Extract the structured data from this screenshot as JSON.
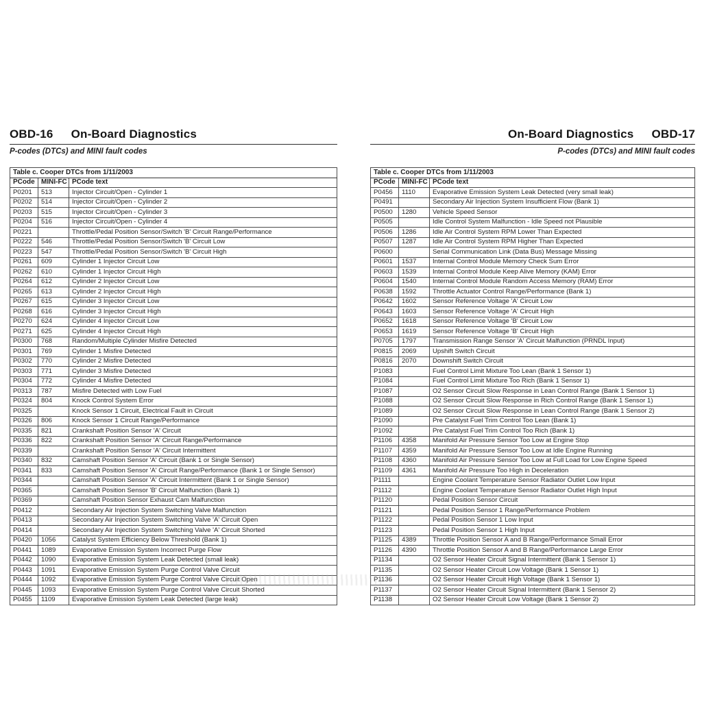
{
  "pages": [
    {
      "header": {
        "code": "OBD-16",
        "title": "On-Board Diagnostics",
        "subtitle": "P-codes (DTCs) and MINI fault codes"
      },
      "table": {
        "caption": "Table c. Cooper DTCs from 1/11/2003",
        "columns": [
          "PCode",
          "MINI-FC",
          "PCode text"
        ],
        "rows": [
          [
            "P0201",
            "513",
            "Injector Circuit/Open - Cylinder 1"
          ],
          [
            "P0202",
            "514",
            "Injector Circuit/Open - Cylinder 2"
          ],
          [
            "P0203",
            "515",
            "Injector Circuit/Open - Cylinder 3"
          ],
          [
            "P0204",
            "516",
            "Injector Circuit/Open - Cylinder 4"
          ],
          [
            "P0221",
            "",
            "Throttle/Pedal Position Sensor/Switch 'B' Circuit Range/Performance"
          ],
          [
            "P0222",
            "546",
            "Throttle/Pedal Position Sensor/Switch 'B' Circuit Low"
          ],
          [
            "P0223",
            "547",
            "Throttle/Pedal Position Sensor/Switch 'B' Circuit High"
          ],
          [
            "P0261",
            "609",
            "Cylinder 1 Injector Circuit Low"
          ],
          [
            "P0262",
            "610",
            "Cylinder 1 Injector Circuit High"
          ],
          [
            "P0264",
            "612",
            "Cylinder 2 Injector Circuit Low"
          ],
          [
            "P0265",
            "613",
            "Cylinder 2 Injector Circuit High"
          ],
          [
            "P0267",
            "615",
            "Cylinder 3 Injector Circuit Low"
          ],
          [
            "P0268",
            "616",
            "Cylinder 3 Injector Circuit High"
          ],
          [
            "P0270",
            "624",
            "Cylinder 4 Injector Circuit Low"
          ],
          [
            "P0271",
            "625",
            "Cylinder 4 Injector Circuit High"
          ],
          [
            "P0300",
            "768",
            "Random/Multiple Cylinder Misfire Detected"
          ],
          [
            "P0301",
            "769",
            "Cylinder 1 Misfire Detected"
          ],
          [
            "P0302",
            "770",
            "Cylinder 2 Misfire Detected"
          ],
          [
            "P0303",
            "771",
            "Cylinder 3 Misfire Detected"
          ],
          [
            "P0304",
            "772",
            "Cylinder 4 Misfire Detected"
          ],
          [
            "P0313",
            "787",
            "Misfire Detected with Low Fuel"
          ],
          [
            "P0324",
            "804",
            "Knock Control System Error"
          ],
          [
            "P0325",
            "",
            "Knock Sensor 1 Circuit, Electrical Fault in Circuit"
          ],
          [
            "P0326",
            "806",
            "Knock Sensor 1 Circuit Range/Performance"
          ],
          [
            "P0335",
            "821",
            "Crankshaft Position Sensor 'A' Circuit"
          ],
          [
            "P0336",
            "822",
            "Crankshaft Position Sensor 'A' Circuit Range/Performance"
          ],
          [
            "P0339",
            "",
            "Crankshaft Position Sensor 'A' Circuit Intermittent"
          ],
          [
            "P0340",
            "832",
            "Camshaft Position Sensor 'A' Circuit (Bank 1 or Single Sensor)"
          ],
          [
            "P0341",
            "833",
            "Camshaft Position Sensor 'A' Circuit Range/Performance (Bank 1 or Single Sensor)"
          ],
          [
            "P0344",
            "",
            "Camshaft Position Sensor 'A' Circuit Intermittent (Bank 1 or Single Sensor)"
          ],
          [
            "P0365",
            "",
            "Camshaft Position Sensor 'B' Circuit Malfunction (Bank 1)"
          ],
          [
            "P0369",
            "",
            "Camshaft Position Sensor Exhaust Cam Malfunction"
          ],
          [
            "P0412",
            "",
            "Secondary Air Injection System Switching Valve Malfunction"
          ],
          [
            "P0413",
            "",
            "Secondary Air Injection System Switching Valve 'A' Circuit Open"
          ],
          [
            "P0414",
            "",
            "Secondary Air Injection System Switching Valve 'A' Circuit Shorted"
          ],
          [
            "P0420",
            "1056",
            "Catalyst System Efficiency Below Threshold (Bank 1)"
          ],
          [
            "P0441",
            "1089",
            "Evaporative Emission System Incorrect Purge Flow"
          ],
          [
            "P0442",
            "1090",
            "Evaporative Emission System Leak Detected (small leak)"
          ],
          [
            "P0443",
            "1091",
            "Evaporative Emission System Purge Control Valve Circuit"
          ],
          [
            "P0444",
            "1092",
            "Evaporative Emission System Purge Control Valve Circuit Open"
          ],
          [
            "P0445",
            "1093",
            "Evaporative Emission System Purge Control Valve Circuit Shorted"
          ],
          [
            "P0455",
            "1109",
            "Evaporative Emission System Leak Detected (large leak)"
          ]
        ]
      }
    },
    {
      "header": {
        "code": "OBD-17",
        "title": "On-Board Diagnostics",
        "subtitle": "P-codes (DTCs) and MINI fault codes"
      },
      "table": {
        "caption": "Table c. Cooper DTCs from 1/11/2003",
        "columns": [
          "PCode",
          "MINI-FC",
          "PCode text"
        ],
        "rows": [
          [
            "P0456",
            "1110",
            "Evaporative Emission System Leak Detected (very small leak)"
          ],
          [
            "P0491",
            "",
            "Secondary Air Injection System Insufficient Flow (Bank 1)"
          ],
          [
            "P0500",
            "1280",
            "Vehicle Speed Sensor"
          ],
          [
            "P0505",
            "",
            "Idle Control System Malfunction - Idle Speed not Plausible"
          ],
          [
            "P0506",
            "1286",
            "Idle Air Control System RPM Lower Than Expected"
          ],
          [
            "P0507",
            "1287",
            "Idle Air Control System RPM Higher Than Expected"
          ],
          [
            "P0600",
            "",
            "Serial Communication Link (Data Bus) Message Missing"
          ],
          [
            "P0601",
            "1537",
            "Internal Control Module Memory Check Sum Error"
          ],
          [
            "P0603",
            "1539",
            "Internal Control Module Keep Alive Memory (KAM) Error"
          ],
          [
            "P0604",
            "1540",
            "Internal Control Module Random Access Memory (RAM) Error"
          ],
          [
            "P0638",
            "1592",
            "Throttle Actuator Control Range/Performance (Bank 1)"
          ],
          [
            "P0642",
            "1602",
            "Sensor Reference Voltage 'A' Circuit Low"
          ],
          [
            "P0643",
            "1603",
            "Sensor Reference Voltage 'A' Circuit High"
          ],
          [
            "P0652",
            "1618",
            "Sensor Reference Voltage 'B' Circuit Low"
          ],
          [
            "P0653",
            "1619",
            "Sensor Reference Voltage 'B' Circuit High"
          ],
          [
            "P0705",
            "1797",
            "Transmission Range Sensor 'A' Circuit Malfunction (PRNDL Input)"
          ],
          [
            "P0815",
            "2069",
            "Upshift Switch Circuit"
          ],
          [
            "P0816",
            "2070",
            "Downshift Switch Circuit"
          ],
          [
            "P1083",
            "",
            "Fuel Control Limit Mixture Too Lean (Bank 1 Sensor 1)"
          ],
          [
            "P1084",
            "",
            "Fuel Control Limit Mixture Too Rich (Bank 1 Sensor 1)"
          ],
          [
            "P1087",
            "",
            "O2 Sensor Circuit Slow Response in Lean Control Range (Bank 1 Sensor 1)"
          ],
          [
            "P1088",
            "",
            "O2 Sensor Circuit Slow Response in Rich Control Range (Bank 1 Sensor 1)"
          ],
          [
            "P1089",
            "",
            "O2 Sensor Circuit Slow Response in Lean Control Range (Bank 1 Sensor 2)"
          ],
          [
            "P1090",
            "",
            "Pre Catalyst Fuel Trim Control Too Lean (Bank 1)"
          ],
          [
            "P1092",
            "",
            "Pre Catalyst Fuel Trim Control Too Rich (Bank 1)"
          ],
          [
            "P1106",
            "4358",
            "Manifold Air Pressure Sensor Too Low at Engine Stop"
          ],
          [
            "P1107",
            "4359",
            "Manifold Air Pressure Sensor Too Low at Idle Engine Running"
          ],
          [
            "P1108",
            "4360",
            "Manifold Air Pressure Sensor Too Low at Full Load for Low Engine Speed"
          ],
          [
            "P1109",
            "4361",
            "Manifold Air Pressure Too High in Deceleration"
          ],
          [
            "P1111",
            "",
            "Engine Coolant Temperature Sensor Radiator Outlet Low Input"
          ],
          [
            "P1112",
            "",
            "Engine Coolant Temperature Sensor Radiator Outlet High Input"
          ],
          [
            "P1120",
            "",
            "Pedal Position Sensor Circuit"
          ],
          [
            "P1121",
            "",
            "Pedal Position Sensor 1 Range/Performance Problem"
          ],
          [
            "P1122",
            "",
            "Pedal Position Sensor 1 Low Input"
          ],
          [
            "P1123",
            "",
            "Pedal Position Sensor 1 High Input"
          ],
          [
            "P1125",
            "4389",
            "Throttle Position Sensor A and B Range/Performance Small Error"
          ],
          [
            "P1126",
            "4390",
            "Throttle Position Sensor A and B Range/Performance Large Error"
          ],
          [
            "P1134",
            "",
            "O2 Sensor Heater Circuit Signal Intermittent (Bank 1 Sensor 1)"
          ],
          [
            "P1135",
            "",
            "O2 Sensor Heater Circuit Low Voltage (Bank 1 Sensor 1)"
          ],
          [
            "P1136",
            "",
            "O2 Sensor Heater Circuit High Voltage (Bank 1 Sensor 1)"
          ],
          [
            "P1137",
            "",
            "O2 Sensor Heater Circuit Signal Intermittent (Bank 1 Sensor 2)"
          ],
          [
            "P1138",
            "",
            "O2 Sensor Heater Circuit Low Voltage (Bank 1 Sensor 2)"
          ]
        ]
      }
    }
  ]
}
